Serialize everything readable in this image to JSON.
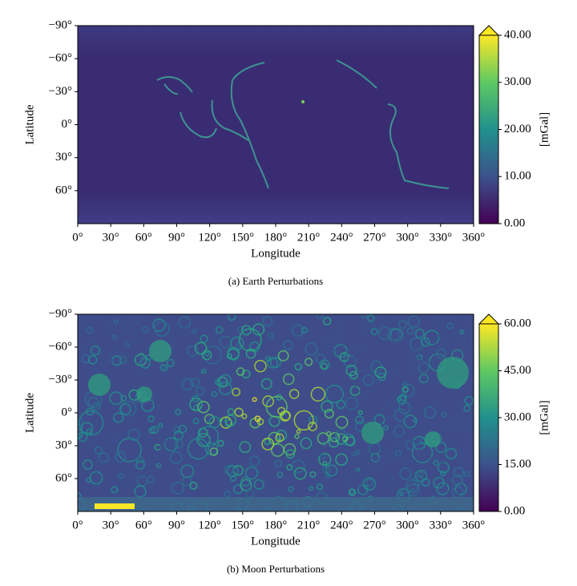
{
  "chart_data": [
    {
      "type": "heatmap",
      "title": "(a) Earth Perturbations",
      "xlabel": "Longitude",
      "ylabel": "Latitude",
      "colormap": "viridis",
      "xlim": [
        0,
        360
      ],
      "xticks": [
        {
          "value": 0,
          "label": "0°"
        },
        {
          "value": 30,
          "label": "30°"
        },
        {
          "value": 60,
          "label": "60°"
        },
        {
          "value": 90,
          "label": "90°"
        },
        {
          "value": 120,
          "label": "120°"
        },
        {
          "value": 150,
          "label": "150°"
        },
        {
          "value": 180,
          "label": "180°"
        },
        {
          "value": 210,
          "label": "210°"
        },
        {
          "value": 240,
          "label": "240°"
        },
        {
          "value": 270,
          "label": "270°"
        },
        {
          "value": 300,
          "label": "300°"
        },
        {
          "value": 330,
          "label": "330°"
        },
        {
          "value": 360,
          "label": "360°"
        }
      ],
      "ylim": [
        -90,
        90
      ],
      "yticks": [
        {
          "value": -90,
          "label": "−90°"
        },
        {
          "value": -60,
          "label": "−60°"
        },
        {
          "value": -30,
          "label": "−30°"
        },
        {
          "value": 0,
          "label": "0°"
        },
        {
          "value": 30,
          "label": "30°"
        },
        {
          "value": 60,
          "label": "60°"
        }
      ],
      "colorbar_label": "[mGal]",
      "colorbar_extend": "max",
      "clim": [
        0,
        40
      ],
      "cticks": [
        {
          "value": 0,
          "label": "0.00"
        },
        {
          "value": 10,
          "label": "10.00"
        },
        {
          "value": 20,
          "label": "20.00"
        },
        {
          "value": 30,
          "label": "30.00"
        },
        {
          "value": 40,
          "label": "40.00"
        }
      ]
    },
    {
      "type": "heatmap",
      "title": "(b) Moon Perturbations",
      "xlabel": "Longitude",
      "ylabel": "Latitude",
      "colormap": "viridis",
      "xlim": [
        0,
        360
      ],
      "xticks": [
        {
          "value": 0,
          "label": "0°"
        },
        {
          "value": 30,
          "label": "30°"
        },
        {
          "value": 60,
          "label": "60°"
        },
        {
          "value": 90,
          "label": "90°"
        },
        {
          "value": 120,
          "label": "120°"
        },
        {
          "value": 150,
          "label": "150°"
        },
        {
          "value": 180,
          "label": "180°"
        },
        {
          "value": 210,
          "label": "210°"
        },
        {
          "value": 240,
          "label": "240°"
        },
        {
          "value": 270,
          "label": "270°"
        },
        {
          "value": 300,
          "label": "300°"
        },
        {
          "value": 330,
          "label": "330°"
        },
        {
          "value": 360,
          "label": "360°"
        }
      ],
      "ylim": [
        -90,
        90
      ],
      "yticks": [
        {
          "value": -90,
          "label": "−90°"
        },
        {
          "value": -60,
          "label": "−60°"
        },
        {
          "value": -30,
          "label": "−30°"
        },
        {
          "value": 0,
          "label": "0°"
        },
        {
          "value": 30,
          "label": "30°"
        },
        {
          "value": 60,
          "label": "60°"
        }
      ],
      "colorbar_label": "[mGal]",
      "colorbar_extend": "max",
      "clim": [
        0,
        60
      ],
      "cticks": [
        {
          "value": 0,
          "label": "0.00"
        },
        {
          "value": 15,
          "label": "15.00"
        },
        {
          "value": 30,
          "label": "30.00"
        },
        {
          "value": 45,
          "label": "45.00"
        },
        {
          "value": 60,
          "label": "60.00"
        }
      ]
    }
  ]
}
